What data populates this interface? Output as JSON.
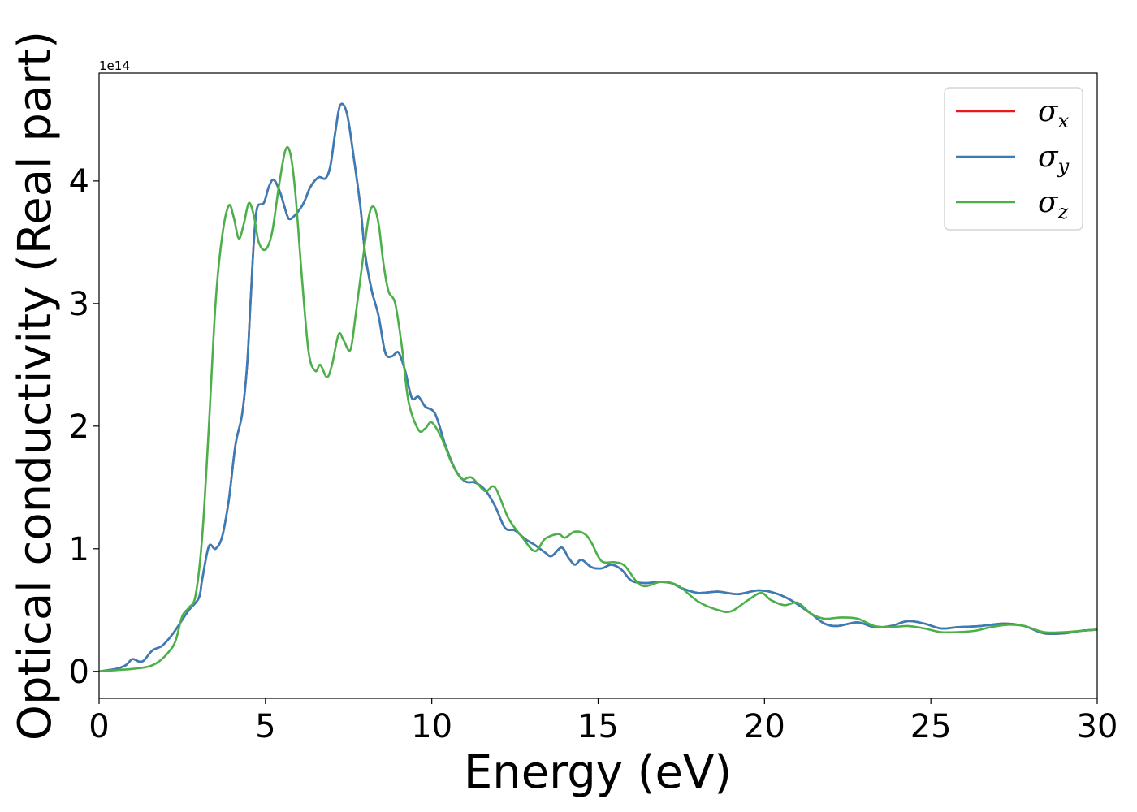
{
  "chart_data": {
    "type": "line",
    "title": "",
    "xlabel": "Energy (eV)",
    "ylabel": "Optical conductivity (Real part)",
    "y_offset_label": "1e14",
    "xlim": [
      0,
      30
    ],
    "ylim": [
      -0.22,
      4.88
    ],
    "x_ticks": [
      0,
      5,
      10,
      15,
      20,
      25,
      30
    ],
    "y_ticks": [
      0,
      1,
      2,
      3,
      4
    ],
    "grid": false,
    "legend_position": "top-right",
    "legend": [
      {
        "symbol": "σ",
        "sub": "x",
        "color": "#e41a1c"
      },
      {
        "symbol": "σ",
        "sub": "y",
        "color": "#377eb8"
      },
      {
        "symbol": "σ",
        "sub": "z",
        "color": "#4daf4a"
      }
    ],
    "series": [
      {
        "name": "σx",
        "color": "#e41a1c",
        "points": [
          [
            0,
            0
          ],
          [
            0.5,
            0.02
          ],
          [
            0.8,
            0.05
          ],
          [
            1.0,
            0.1
          ],
          [
            1.2,
            0.08
          ],
          [
            1.35,
            0.09
          ],
          [
            1.6,
            0.17
          ],
          [
            1.9,
            0.21
          ],
          [
            2.2,
            0.3
          ],
          [
            2.5,
            0.42
          ],
          [
            2.7,
            0.5
          ],
          [
            3.0,
            0.6
          ],
          [
            3.1,
            0.75
          ],
          [
            3.3,
            1.02
          ],
          [
            3.5,
            1.0
          ],
          [
            3.7,
            1.1
          ],
          [
            3.9,
            1.4
          ],
          [
            4.1,
            1.85
          ],
          [
            4.3,
            2.1
          ],
          [
            4.45,
            2.5
          ],
          [
            4.55,
            3.0
          ],
          [
            4.65,
            3.5
          ],
          [
            4.75,
            3.78
          ],
          [
            4.95,
            3.82
          ],
          [
            5.1,
            3.95
          ],
          [
            5.25,
            4.01
          ],
          [
            5.45,
            3.9
          ],
          [
            5.65,
            3.72
          ],
          [
            5.75,
            3.69
          ],
          [
            5.95,
            3.74
          ],
          [
            6.15,
            3.82
          ],
          [
            6.35,
            3.95
          ],
          [
            6.6,
            4.03
          ],
          [
            6.8,
            4.02
          ],
          [
            6.95,
            4.12
          ],
          [
            7.1,
            4.4
          ],
          [
            7.25,
            4.62
          ],
          [
            7.45,
            4.55
          ],
          [
            7.65,
            4.2
          ],
          [
            7.85,
            3.8
          ],
          [
            8.0,
            3.4
          ],
          [
            8.2,
            3.1
          ],
          [
            8.4,
            2.9
          ],
          [
            8.6,
            2.6
          ],
          [
            8.8,
            2.57
          ],
          [
            9.0,
            2.6
          ],
          [
            9.2,
            2.45
          ],
          [
            9.4,
            2.23
          ],
          [
            9.6,
            2.24
          ],
          [
            9.8,
            2.16
          ],
          [
            10.1,
            2.1
          ],
          [
            10.4,
            1.85
          ],
          [
            10.7,
            1.65
          ],
          [
            11.0,
            1.55
          ],
          [
            11.3,
            1.54
          ],
          [
            11.6,
            1.48
          ],
          [
            11.9,
            1.35
          ],
          [
            12.2,
            1.17
          ],
          [
            12.5,
            1.15
          ],
          [
            12.8,
            1.08
          ],
          [
            13.1,
            1.03
          ],
          [
            13.4,
            0.97
          ],
          [
            13.6,
            0.94
          ],
          [
            13.9,
            1.01
          ],
          [
            14.1,
            0.93
          ],
          [
            14.3,
            0.87
          ],
          [
            14.5,
            0.91
          ],
          [
            14.8,
            0.85
          ],
          [
            15.1,
            0.84
          ],
          [
            15.4,
            0.87
          ],
          [
            15.7,
            0.83
          ],
          [
            16.0,
            0.74
          ],
          [
            16.4,
            0.72
          ],
          [
            16.8,
            0.73
          ],
          [
            17.2,
            0.72
          ],
          [
            17.5,
            0.68
          ],
          [
            18.0,
            0.64
          ],
          [
            18.6,
            0.65
          ],
          [
            19.2,
            0.63
          ],
          [
            19.8,
            0.66
          ],
          [
            20.3,
            0.64
          ],
          [
            20.8,
            0.58
          ],
          [
            21.4,
            0.47
          ],
          [
            21.8,
            0.39
          ],
          [
            22.2,
            0.37
          ],
          [
            22.8,
            0.4
          ],
          [
            23.3,
            0.36
          ],
          [
            23.8,
            0.37
          ],
          [
            24.3,
            0.41
          ],
          [
            24.8,
            0.39
          ],
          [
            25.3,
            0.35
          ],
          [
            25.8,
            0.36
          ],
          [
            26.5,
            0.37
          ],
          [
            27.2,
            0.39
          ],
          [
            27.8,
            0.37
          ],
          [
            28.4,
            0.31
          ],
          [
            29.0,
            0.31
          ],
          [
            29.5,
            0.33
          ],
          [
            30.0,
            0.34
          ]
        ]
      },
      {
        "name": "σy",
        "color": "#377eb8",
        "points": [
          [
            0,
            0
          ],
          [
            0.5,
            0.02
          ],
          [
            0.8,
            0.05
          ],
          [
            1.0,
            0.1
          ],
          [
            1.2,
            0.08
          ],
          [
            1.35,
            0.09
          ],
          [
            1.6,
            0.17
          ],
          [
            1.9,
            0.21
          ],
          [
            2.2,
            0.3
          ],
          [
            2.5,
            0.42
          ],
          [
            2.7,
            0.5
          ],
          [
            3.0,
            0.6
          ],
          [
            3.1,
            0.75
          ],
          [
            3.3,
            1.02
          ],
          [
            3.5,
            1.0
          ],
          [
            3.7,
            1.1
          ],
          [
            3.9,
            1.4
          ],
          [
            4.1,
            1.85
          ],
          [
            4.3,
            2.1
          ],
          [
            4.45,
            2.5
          ],
          [
            4.55,
            3.0
          ],
          [
            4.65,
            3.5
          ],
          [
            4.75,
            3.78
          ],
          [
            4.95,
            3.82
          ],
          [
            5.1,
            3.95
          ],
          [
            5.25,
            4.01
          ],
          [
            5.45,
            3.9
          ],
          [
            5.65,
            3.72
          ],
          [
            5.75,
            3.69
          ],
          [
            5.95,
            3.74
          ],
          [
            6.15,
            3.82
          ],
          [
            6.35,
            3.95
          ],
          [
            6.6,
            4.03
          ],
          [
            6.8,
            4.02
          ],
          [
            6.95,
            4.12
          ],
          [
            7.1,
            4.4
          ],
          [
            7.25,
            4.62
          ],
          [
            7.45,
            4.55
          ],
          [
            7.65,
            4.2
          ],
          [
            7.85,
            3.8
          ],
          [
            8.0,
            3.4
          ],
          [
            8.2,
            3.1
          ],
          [
            8.4,
            2.9
          ],
          [
            8.6,
            2.6
          ],
          [
            8.8,
            2.57
          ],
          [
            9.0,
            2.6
          ],
          [
            9.2,
            2.45
          ],
          [
            9.4,
            2.23
          ],
          [
            9.6,
            2.24
          ],
          [
            9.8,
            2.16
          ],
          [
            10.1,
            2.1
          ],
          [
            10.4,
            1.85
          ],
          [
            10.7,
            1.65
          ],
          [
            11.0,
            1.55
          ],
          [
            11.3,
            1.54
          ],
          [
            11.6,
            1.48
          ],
          [
            11.9,
            1.35
          ],
          [
            12.2,
            1.17
          ],
          [
            12.5,
            1.15
          ],
          [
            12.8,
            1.08
          ],
          [
            13.1,
            1.03
          ],
          [
            13.4,
            0.97
          ],
          [
            13.6,
            0.94
          ],
          [
            13.9,
            1.01
          ],
          [
            14.1,
            0.93
          ],
          [
            14.3,
            0.87
          ],
          [
            14.5,
            0.91
          ],
          [
            14.8,
            0.85
          ],
          [
            15.1,
            0.84
          ],
          [
            15.4,
            0.87
          ],
          [
            15.7,
            0.83
          ],
          [
            16.0,
            0.74
          ],
          [
            16.4,
            0.72
          ],
          [
            16.8,
            0.73
          ],
          [
            17.2,
            0.72
          ],
          [
            17.5,
            0.68
          ],
          [
            18.0,
            0.64
          ],
          [
            18.6,
            0.65
          ],
          [
            19.2,
            0.63
          ],
          [
            19.8,
            0.66
          ],
          [
            20.3,
            0.64
          ],
          [
            20.8,
            0.58
          ],
          [
            21.4,
            0.47
          ],
          [
            21.8,
            0.39
          ],
          [
            22.2,
            0.37
          ],
          [
            22.8,
            0.4
          ],
          [
            23.3,
            0.36
          ],
          [
            23.8,
            0.37
          ],
          [
            24.3,
            0.41
          ],
          [
            24.8,
            0.39
          ],
          [
            25.3,
            0.35
          ],
          [
            25.8,
            0.36
          ],
          [
            26.5,
            0.37
          ],
          [
            27.2,
            0.39
          ],
          [
            27.8,
            0.37
          ],
          [
            28.4,
            0.31
          ],
          [
            29.0,
            0.31
          ],
          [
            29.5,
            0.33
          ],
          [
            30.0,
            0.34
          ]
        ]
      },
      {
        "name": "σz",
        "color": "#4daf4a",
        "points": [
          [
            0,
            0
          ],
          [
            0.5,
            0.01
          ],
          [
            1.0,
            0.02
          ],
          [
            1.5,
            0.04
          ],
          [
            1.8,
            0.08
          ],
          [
            2.1,
            0.16
          ],
          [
            2.3,
            0.25
          ],
          [
            2.5,
            0.45
          ],
          [
            2.7,
            0.52
          ],
          [
            2.9,
            0.62
          ],
          [
            3.1,
            1.1
          ],
          [
            3.3,
            2.0
          ],
          [
            3.5,
            3.0
          ],
          [
            3.7,
            3.55
          ],
          [
            3.9,
            3.8
          ],
          [
            4.05,
            3.7
          ],
          [
            4.2,
            3.53
          ],
          [
            4.35,
            3.65
          ],
          [
            4.5,
            3.82
          ],
          [
            4.65,
            3.72
          ],
          [
            4.8,
            3.5
          ],
          [
            5.0,
            3.44
          ],
          [
            5.2,
            3.58
          ],
          [
            5.4,
            3.95
          ],
          [
            5.6,
            4.25
          ],
          [
            5.75,
            4.22
          ],
          [
            5.9,
            3.9
          ],
          [
            6.1,
            3.2
          ],
          [
            6.3,
            2.6
          ],
          [
            6.5,
            2.45
          ],
          [
            6.65,
            2.5
          ],
          [
            6.85,
            2.4
          ],
          [
            7.0,
            2.5
          ],
          [
            7.2,
            2.75
          ],
          [
            7.35,
            2.7
          ],
          [
            7.55,
            2.62
          ],
          [
            7.7,
            2.88
          ],
          [
            7.9,
            3.3
          ],
          [
            8.1,
            3.7
          ],
          [
            8.25,
            3.79
          ],
          [
            8.4,
            3.65
          ],
          [
            8.55,
            3.32
          ],
          [
            8.7,
            3.1
          ],
          [
            8.9,
            3.0
          ],
          [
            9.1,
            2.65
          ],
          [
            9.3,
            2.2
          ],
          [
            9.6,
            1.97
          ],
          [
            9.8,
            1.98
          ],
          [
            10.0,
            2.03
          ],
          [
            10.3,
            1.9
          ],
          [
            10.6,
            1.7
          ],
          [
            10.9,
            1.57
          ],
          [
            11.2,
            1.58
          ],
          [
            11.6,
            1.47
          ],
          [
            11.9,
            1.5
          ],
          [
            12.3,
            1.25
          ],
          [
            12.7,
            1.1
          ],
          [
            13.1,
            0.98
          ],
          [
            13.4,
            1.08
          ],
          [
            13.8,
            1.12
          ],
          [
            14.0,
            1.09
          ],
          [
            14.3,
            1.14
          ],
          [
            14.6,
            1.12
          ],
          [
            14.8,
            1.05
          ],
          [
            15.1,
            0.9
          ],
          [
            15.5,
            0.89
          ],
          [
            15.8,
            0.86
          ],
          [
            16.3,
            0.7
          ],
          [
            16.9,
            0.73
          ],
          [
            17.4,
            0.7
          ],
          [
            18.0,
            0.57
          ],
          [
            18.6,
            0.5
          ],
          [
            19.0,
            0.49
          ],
          [
            19.5,
            0.58
          ],
          [
            19.9,
            0.64
          ],
          [
            20.2,
            0.58
          ],
          [
            20.6,
            0.54
          ],
          [
            21.0,
            0.56
          ],
          [
            21.4,
            0.47
          ],
          [
            21.8,
            0.43
          ],
          [
            22.3,
            0.44
          ],
          [
            22.8,
            0.43
          ],
          [
            23.3,
            0.37
          ],
          [
            23.8,
            0.36
          ],
          [
            24.3,
            0.37
          ],
          [
            24.8,
            0.35
          ],
          [
            25.3,
            0.32
          ],
          [
            25.8,
            0.32
          ],
          [
            26.3,
            0.33
          ],
          [
            26.8,
            0.36
          ],
          [
            27.3,
            0.38
          ],
          [
            27.8,
            0.37
          ],
          [
            28.4,
            0.32
          ],
          [
            29.0,
            0.32
          ],
          [
            29.5,
            0.33
          ],
          [
            30.0,
            0.34
          ]
        ]
      }
    ]
  }
}
